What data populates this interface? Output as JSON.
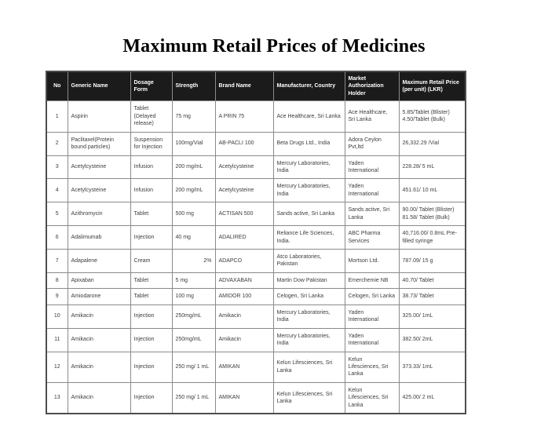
{
  "title": "Maximum Retail Prices of Medicines",
  "colors": {
    "header_bg": "#1b1b1b",
    "header_text": "#ffffff",
    "body_text": "#3d3d3d",
    "border": "#8a8a8a"
  },
  "table": {
    "columns": [
      "No",
      "Generic Name",
      "Dosage Form",
      "Strength",
      "Brand Name",
      "Manufacturer, Country",
      "Market Authorization Holder",
      "Maximum Retail Price (per unit) (LKR)"
    ],
    "rows": [
      [
        "1",
        "Aspirin",
        "Tablet (Delayed release)",
        "75 mg",
        "A PRIN 75",
        "Ace Healthcare, Sri Lanka",
        "Ace Healthcare, Sri Lanka",
        "5.85/Tablet (Blister)\n4.50/Tablet (Bulk)"
      ],
      [
        "2",
        "Paclitaxel(Protein bound particles)",
        "Suspension for Injection",
        "100mg/Vial",
        "AB-PACLI 100",
        "Beta Drugs Ltd., India",
        "Adora Ceylon Pvt,ltd",
        "26,332.29 /Vial"
      ],
      [
        "3",
        "Acetylcysteine",
        "Infusion",
        "200 mg/mL",
        "Acetylcysteine",
        "Mercury Laboratories, India",
        "Yaden International",
        "228.28/ 5 mL"
      ],
      [
        "4",
        "Acetylcysteine",
        "Infusion",
        "200 mg/mL",
        "Acetylcysteine",
        "Mercury Laboratories, India",
        "Yaden International",
        "451.61/ 10 mL"
      ],
      [
        "5",
        "Azithromycin",
        "Tablet",
        "500 mg",
        "ACTISAN 500",
        "Sands active, Sri Lanka",
        "Sands active, Sri Lanka",
        "90.00/ Tablet (Blister)\n81.58/ Tablet (Bulk)"
      ],
      [
        "6",
        "Adalimumab",
        "Injection",
        "40 mg",
        "ADALIRED",
        "Reliance Life Sciences, India.",
        "ABC Pharma Services",
        "40,716.00/ 0.8mL Pre-filled syringe"
      ],
      [
        "7",
        "Adapalene",
        "Cream",
        "2%",
        "ADAPCO",
        "Atco Laboratories, Pakistan",
        "Mortson Ltd.",
        "787.09/ 15 g"
      ],
      [
        "8",
        "Apixaban",
        "Tablet",
        "5 mg",
        "ADVAXABAN",
        "Martin Dow Pakistan",
        "Emerchemie NB",
        "40.70/ Tablet"
      ],
      [
        "9",
        "Amiodarone",
        "Tablet",
        "100 mg",
        "AMIDOR 100",
        "Celogen, Sri Lanka",
        "Celogen, Sri Lanka",
        "38.73/ Tablet"
      ],
      [
        "10",
        "Amikacin",
        "Injection",
        "250mg/mL",
        "Amikacin",
        "Mercury Laboratories, India",
        "Yaden International",
        "325.00/ 1mL"
      ],
      [
        "11",
        "Amikacin",
        "Injection",
        "250mg/mL",
        "Amikacin",
        "Mercury Laboratories, India",
        "Yaden International",
        "382.50/ 2mL"
      ],
      [
        "12",
        "Amikacin",
        "Injection",
        "250 mg/ 1 mL",
        "AMIKAN",
        "Kelun Lifesciences, Sri Lanka",
        "Kelun Lifesciences, Sri Lanka",
        "373.33/ 1mL"
      ],
      [
        "13",
        "Amikacin",
        "Injection",
        "250 mg/ 1 mL",
        "AMIKAN",
        "Kelun Lifesciences, Sri Lanka",
        "Kelun Lifesciences, Sri Lanka",
        "425.00/ 2 mL"
      ]
    ]
  },
  "layout_hints": {
    "align_overrides": [
      {
        "row": 6,
        "col": 3,
        "align": "right"
      }
    ]
  }
}
